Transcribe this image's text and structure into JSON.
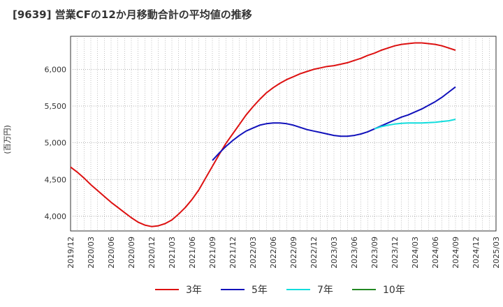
{
  "title": "[9639]  営業CFの12か月移動合計の平均値の推移",
  "chart_data": {
    "type": "line",
    "title": "[9639]  営業CFの12か月移動合計の平均値の推移",
    "ylabel": "(百万円)",
    "xlabel": "",
    "ylim": [
      3800,
      6450
    ],
    "yticks": [
      4000,
      4500,
      5000,
      5500,
      6000
    ],
    "ytick_labels": [
      "4,000",
      "4,500",
      "5,000",
      "5,500",
      "6,000"
    ],
    "x_tick_labels": [
      "2019/12",
      "2020/03",
      "2020/06",
      "2020/09",
      "2020/12",
      "2021/03",
      "2021/06",
      "2021/09",
      "2021/12",
      "2022/03",
      "2022/06",
      "2022/09",
      "2022/12",
      "2023/03",
      "2023/06",
      "2023/09",
      "2023/12",
      "2024/03",
      "2024/06",
      "2024/09",
      "2024/12",
      "2025/03"
    ],
    "grid": true,
    "legend_position": "bottom",
    "series": [
      {
        "name": "3年",
        "color": "#dd1111",
        "values": [
          [
            "2019/12",
            4670
          ],
          [
            "2020/01",
            4600
          ],
          [
            "2020/02",
            4520
          ],
          [
            "2020/03",
            4430
          ],
          [
            "2020/04",
            4350
          ],
          [
            "2020/05",
            4270
          ],
          [
            "2020/06",
            4190
          ],
          [
            "2020/07",
            4120
          ],
          [
            "2020/08",
            4050
          ],
          [
            "2020/09",
            3980
          ],
          [
            "2020/10",
            3920
          ],
          [
            "2020/11",
            3880
          ],
          [
            "2020/12",
            3860
          ],
          [
            "2021/01",
            3870
          ],
          [
            "2021/02",
            3900
          ],
          [
            "2021/03",
            3950
          ],
          [
            "2021/04",
            4030
          ],
          [
            "2021/05",
            4120
          ],
          [
            "2021/06",
            4230
          ],
          [
            "2021/07",
            4360
          ],
          [
            "2021/08",
            4520
          ],
          [
            "2021/09",
            4680
          ],
          [
            "2021/10",
            4840
          ],
          [
            "2021/11",
            4990
          ],
          [
            "2021/12",
            5120
          ],
          [
            "2022/01",
            5250
          ],
          [
            "2022/02",
            5380
          ],
          [
            "2022/03",
            5490
          ],
          [
            "2022/04",
            5590
          ],
          [
            "2022/05",
            5680
          ],
          [
            "2022/06",
            5750
          ],
          [
            "2022/07",
            5810
          ],
          [
            "2022/08",
            5860
          ],
          [
            "2022/09",
            5900
          ],
          [
            "2022/10",
            5940
          ],
          [
            "2022/11",
            5970
          ],
          [
            "2022/12",
            6000
          ],
          [
            "2023/01",
            6020
          ],
          [
            "2023/02",
            6040
          ],
          [
            "2023/03",
            6050
          ],
          [
            "2023/04",
            6070
          ],
          [
            "2023/05",
            6090
          ],
          [
            "2023/06",
            6120
          ],
          [
            "2023/07",
            6150
          ],
          [
            "2023/08",
            6190
          ],
          [
            "2023/09",
            6220
          ],
          [
            "2023/10",
            6260
          ],
          [
            "2023/11",
            6290
          ],
          [
            "2023/12",
            6320
          ],
          [
            "2024/01",
            6340
          ],
          [
            "2024/02",
            6350
          ],
          [
            "2024/03",
            6360
          ],
          [
            "2024/04",
            6360
          ],
          [
            "2024/05",
            6350
          ],
          [
            "2024/06",
            6340
          ],
          [
            "2024/07",
            6320
          ],
          [
            "2024/08",
            6290
          ],
          [
            "2024/09",
            6260
          ]
        ]
      },
      {
        "name": "5年",
        "color": "#1111bb",
        "values": [
          [
            "2021/09",
            4760
          ],
          [
            "2021/10",
            4860
          ],
          [
            "2021/11",
            4950
          ],
          [
            "2021/12",
            5030
          ],
          [
            "2022/01",
            5100
          ],
          [
            "2022/02",
            5160
          ],
          [
            "2022/03",
            5200
          ],
          [
            "2022/04",
            5240
          ],
          [
            "2022/05",
            5260
          ],
          [
            "2022/06",
            5270
          ],
          [
            "2022/07",
            5270
          ],
          [
            "2022/08",
            5260
          ],
          [
            "2022/09",
            5240
          ],
          [
            "2022/10",
            5210
          ],
          [
            "2022/11",
            5180
          ],
          [
            "2022/12",
            5160
          ],
          [
            "2023/01",
            5140
          ],
          [
            "2023/02",
            5120
          ],
          [
            "2023/03",
            5100
          ],
          [
            "2023/04",
            5090
          ],
          [
            "2023/05",
            5090
          ],
          [
            "2023/06",
            5100
          ],
          [
            "2023/07",
            5120
          ],
          [
            "2023/08",
            5150
          ],
          [
            "2023/09",
            5190
          ],
          [
            "2023/10",
            5230
          ],
          [
            "2023/11",
            5270
          ],
          [
            "2023/12",
            5310
          ],
          [
            "2024/01",
            5350
          ],
          [
            "2024/02",
            5380
          ],
          [
            "2024/03",
            5420
          ],
          [
            "2024/04",
            5460
          ],
          [
            "2024/05",
            5510
          ],
          [
            "2024/06",
            5560
          ],
          [
            "2024/07",
            5620
          ],
          [
            "2024/08",
            5690
          ],
          [
            "2024/09",
            5760
          ]
        ]
      },
      {
        "name": "7年",
        "color": "#11dddd",
        "values": [
          [
            "2023/09",
            5190
          ],
          [
            "2023/10",
            5220
          ],
          [
            "2023/11",
            5240
          ],
          [
            "2023/12",
            5255
          ],
          [
            "2024/01",
            5265
          ],
          [
            "2024/02",
            5270
          ],
          [
            "2024/03",
            5270
          ],
          [
            "2024/04",
            5270
          ],
          [
            "2024/05",
            5275
          ],
          [
            "2024/06",
            5280
          ],
          [
            "2024/07",
            5290
          ],
          [
            "2024/08",
            5300
          ],
          [
            "2024/09",
            5320
          ]
        ]
      },
      {
        "name": "10年",
        "color": "#228822",
        "values": []
      }
    ]
  }
}
